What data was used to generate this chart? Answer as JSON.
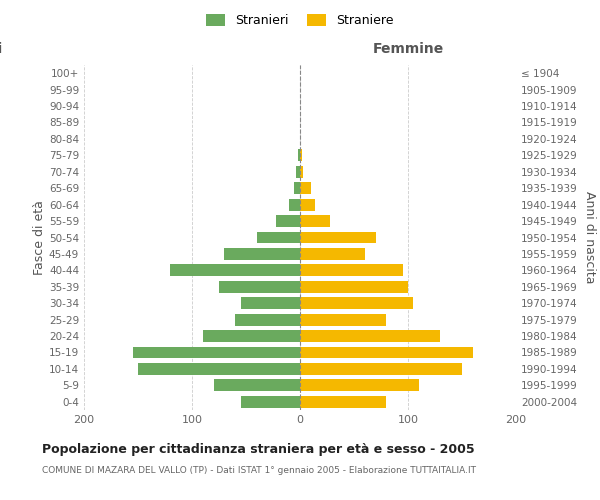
{
  "age_groups": [
    "0-4",
    "5-9",
    "10-14",
    "15-19",
    "20-24",
    "25-29",
    "30-34",
    "35-39",
    "40-44",
    "45-49",
    "50-54",
    "55-59",
    "60-64",
    "65-69",
    "70-74",
    "75-79",
    "80-84",
    "85-89",
    "90-94",
    "95-99",
    "100+"
  ],
  "birth_years": [
    "2000-2004",
    "1995-1999",
    "1990-1994",
    "1985-1989",
    "1980-1984",
    "1975-1979",
    "1970-1974",
    "1965-1969",
    "1960-1964",
    "1955-1959",
    "1950-1954",
    "1945-1949",
    "1940-1944",
    "1935-1939",
    "1930-1934",
    "1925-1929",
    "1920-1924",
    "1915-1919",
    "1910-1914",
    "1905-1909",
    "≤ 1904"
  ],
  "males": [
    55,
    80,
    150,
    155,
    90,
    60,
    55,
    75,
    120,
    70,
    40,
    22,
    10,
    6,
    4,
    2,
    0,
    0,
    0,
    0,
    0
  ],
  "females": [
    80,
    110,
    150,
    160,
    130,
    80,
    105,
    100,
    95,
    60,
    70,
    28,
    14,
    10,
    3,
    2,
    0,
    0,
    0,
    0,
    0
  ],
  "male_color": "#6aaa5e",
  "female_color": "#f5b800",
  "male_label": "Stranieri",
  "female_label": "Straniere",
  "label_femmine": "Femmine",
  "ylabel_left": "Fasce di età",
  "ylabel_right": "Anni di nascita",
  "title": "Popolazione per cittadinanza straniera per età e sesso - 2005",
  "subtitle": "COMUNE DI MAZARA DEL VALLO (TP) - Dati ISTAT 1° gennaio 2005 - Elaborazione TUTTAITALIA.IT",
  "xlim": 200,
  "bg_color": "#ffffff",
  "grid_color": "#cccccc"
}
